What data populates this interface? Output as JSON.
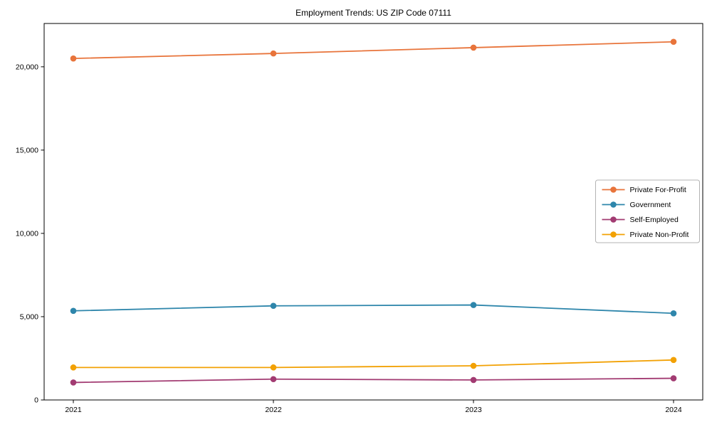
{
  "chart_data": {
    "type": "line",
    "title": "Employment Trends: US ZIP Code 07111",
    "x": [
      "2021",
      "2022",
      "2023",
      "2024"
    ],
    "series": [
      {
        "name": "Private For-Profit",
        "color": "#E8743B",
        "values": [
          20500,
          20800,
          21150,
          21500
        ]
      },
      {
        "name": "Government",
        "color": "#2E86AB",
        "values": [
          5350,
          5650,
          5700,
          5200
        ]
      },
      {
        "name": "Self-Employed",
        "color": "#A23B72",
        "values": [
          1050,
          1250,
          1200,
          1300
        ]
      },
      {
        "name": "Private Non-Profit",
        "color": "#F2A104",
        "values": [
          1950,
          1950,
          2050,
          2400
        ]
      }
    ],
    "yticks": {
      "values": [
        0,
        5000,
        10000,
        15000,
        20000
      ],
      "labels": [
        "0",
        "5,000",
        "10,000",
        "15,000",
        "20,000"
      ]
    },
    "ylim": [
      0,
      22600
    ],
    "xlabel": "",
    "ylabel": "",
    "grid": false,
    "legend": {
      "position": "center-right",
      "frame": true,
      "frame_color": "#b3b3b3"
    },
    "axis_color": "#000000",
    "background_color": "#ffffff"
  }
}
